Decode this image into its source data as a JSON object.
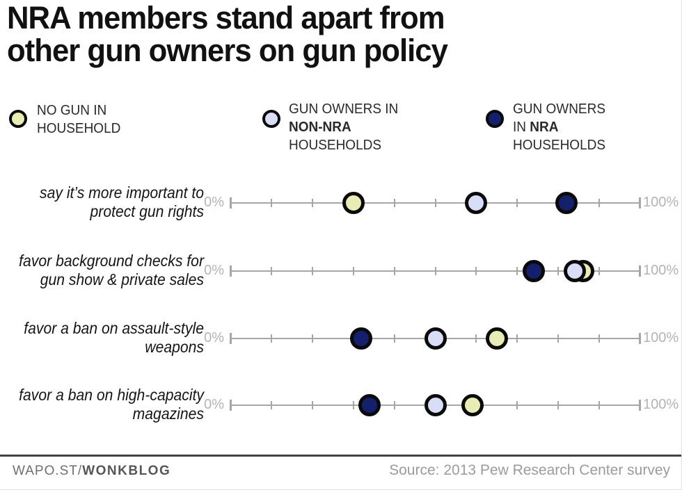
{
  "title": {
    "line1": "NRA members stand apart from",
    "line2": "other gun owners on gun policy"
  },
  "legend": {
    "no_gun": {
      "line1": "NO GUN IN",
      "line2": "HOUSEHOLD"
    },
    "non_nra": {
      "line1": "GUN OWNERS IN",
      "line2_bold": "NON-NRA",
      "line3": "HOUSEHOLDS"
    },
    "nra": {
      "line1": "GUN OWNERS",
      "line2_prefix": "IN ",
      "line2_bold": "NRA",
      "line3": "HOUSEHOLDS"
    }
  },
  "colors": {
    "no_gun": "#e9ecb4",
    "non_nra": "#d8ddf8",
    "nra": "#14206b",
    "dot_border": "#0a0a0a",
    "axis": "#a6a6a6",
    "axis_label": "#b4b4b4"
  },
  "rows": [
    {
      "label_line1": "say it’s more important to",
      "label_line2": "protect gun rights",
      "axis_min": "0%",
      "axis_max": "100%",
      "dots": [
        {
          "series": "no_gun",
          "value": 30
        },
        {
          "series": "non_nra",
          "value": 60
        },
        {
          "series": "nra",
          "value": 82
        }
      ]
    },
    {
      "label_line1": "favor background checks for",
      "label_line2": "gun show & private sales",
      "axis_min": "0%",
      "axis_max": "100%",
      "dots": [
        {
          "series": "no_gun",
          "value": 86
        },
        {
          "series": "non_nra",
          "value": 84
        },
        {
          "series": "nra",
          "value": 74
        }
      ]
    },
    {
      "label_line1": "favor a ban on assault-style",
      "label_line2": "weapons",
      "axis_min": "0%",
      "axis_max": "100%",
      "dots": [
        {
          "series": "no_gun",
          "value": 65
        },
        {
          "series": "non_nra",
          "value": 50
        },
        {
          "series": "nra",
          "value": 32
        }
      ]
    },
    {
      "label_line1": "favor a ban on high-capacity",
      "label_line2": "magazines",
      "axis_min": "0%",
      "axis_max": "100%",
      "dots": [
        {
          "series": "no_gun",
          "value": 59
        },
        {
          "series": "non_nra",
          "value": 50
        },
        {
          "series": "nra",
          "value": 34
        }
      ]
    }
  ],
  "footer": {
    "brand_prefix": "WAPO.ST/",
    "brand_bold": "WONKBLOG",
    "source": "Source: 2013 Pew Research Center survey"
  },
  "chart_data": {
    "type": "scatter",
    "title": "NRA members stand apart from other gun owners on gun policy",
    "categories": [
      "say it's more important to protect gun rights",
      "favor background checks for gun show & private sales",
      "favor a ban on assault-style weapons",
      "favor a ban on high-capacity magazines"
    ],
    "series": [
      {
        "name": "No gun in household",
        "values": [
          30,
          86,
          65,
          59
        ]
      },
      {
        "name": "Gun owners in non-NRA households",
        "values": [
          60,
          84,
          50,
          50
        ]
      },
      {
        "name": "Gun owners in NRA households",
        "values": [
          82,
          74,
          32,
          34
        ]
      }
    ],
    "x_range": [
      0,
      100
    ],
    "x_tick_interval": 10,
    "x_axis_labels": [
      "0%",
      "100%"
    ],
    "legend_position": "top",
    "grid": false,
    "source": "Source: 2013 Pew Research Center survey"
  }
}
